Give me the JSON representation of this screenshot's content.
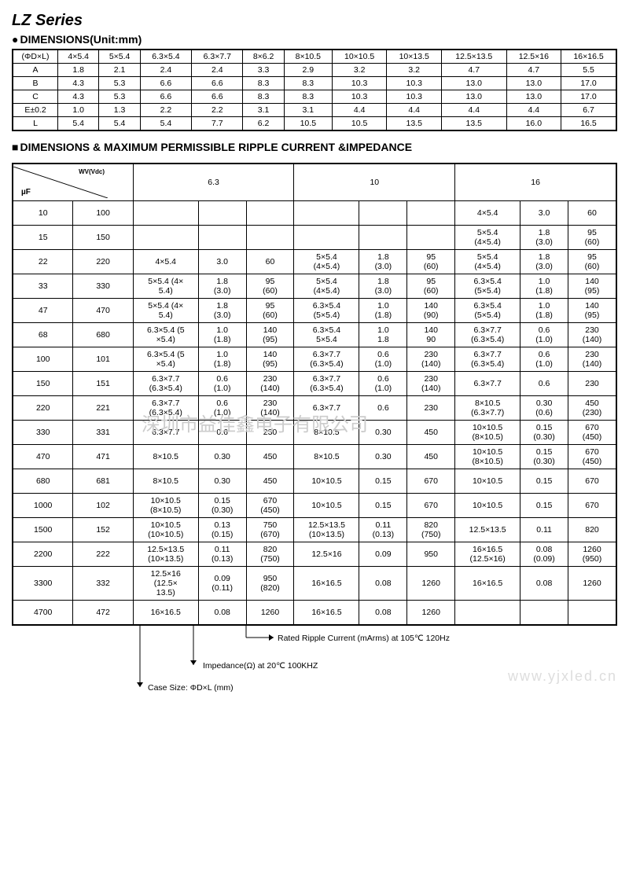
{
  "title": "LZ Series",
  "dim_heading": "DIMENSIONS(Unit:mm)",
  "ripple_heading": "DIMENSIONS & MAXIMUM PERMISSIBLE RIPPLE CURRENT &IMPEDANCE",
  "dim_table": {
    "header": [
      "(ΦD×L)",
      "4×5.4",
      "5×5.4",
      "6.3×5.4",
      "6.3×7.7",
      "8×6.2",
      "8×10.5",
      "10×10.5",
      "10×13.5",
      "12.5×13.5",
      "12.5×16",
      "16×16.5"
    ],
    "rows": [
      [
        "A",
        "1.8",
        "2.1",
        "2.4",
        "2.4",
        "3.3",
        "2.9",
        "3.2",
        "3.2",
        "4.7",
        "4.7",
        "5.5"
      ],
      [
        "B",
        "4.3",
        "5.3",
        "6.6",
        "6.6",
        "8.3",
        "8.3",
        "10.3",
        "10.3",
        "13.0",
        "13.0",
        "17.0"
      ],
      [
        "C",
        "4.3",
        "5.3",
        "6.6",
        "6.6",
        "8.3",
        "8.3",
        "10.3",
        "10.3",
        "13.0",
        "13.0",
        "17.0"
      ],
      [
        "E±0.2",
        "1.0",
        "1.3",
        "2.2",
        "2.2",
        "3.1",
        "3.1",
        "4.4",
        "4.4",
        "4.4",
        "4.4",
        "6.7"
      ],
      [
        "L",
        "5.4",
        "5.4",
        "5.4",
        "7.7",
        "6.2",
        "10.5",
        "10.5",
        "13.5",
        "13.5",
        "16.0",
        "16.5"
      ]
    ]
  },
  "ripple_table": {
    "diag_top": "WV(Vdc)",
    "diag_bot": "µF",
    "voltage_headers": [
      "6.3",
      "10",
      "16"
    ],
    "rows": [
      {
        "uf": "10",
        "code": "100",
        "v6": [
          "",
          "",
          ""
        ],
        "v10": [
          "",
          "",
          ""
        ],
        "v16": [
          "4×5.4",
          "3.0",
          "60"
        ]
      },
      {
        "uf": "15",
        "code": "150",
        "v6": [
          "",
          "",
          ""
        ],
        "v10": [
          "",
          "",
          ""
        ],
        "v16": [
          "5×5.4\n(4×5.4)",
          "1.8\n(3.0)",
          "95\n(60)"
        ]
      },
      {
        "uf": "22",
        "code": "220",
        "v6": [
          "4×5.4",
          "3.0",
          "60"
        ],
        "v10": [
          "5×5.4\n(4×5.4)",
          "1.8\n(3.0)",
          "95\n(60)"
        ],
        "v16": [
          "5×5.4\n(4×5.4)",
          "1.8\n(3.0)",
          "95\n(60)"
        ]
      },
      {
        "uf": "33",
        "code": "330",
        "v6": [
          "5×5.4  (4×\n5.4)",
          "1.8\n(3.0)",
          "95\n(60)"
        ],
        "v10": [
          "5×5.4\n(4×5.4)",
          "1.8\n(3.0)",
          "95\n(60)"
        ],
        "v16": [
          "6.3×5.4\n(5×5.4)",
          "1.0\n(1.8)",
          "140\n(95)"
        ]
      },
      {
        "uf": "47",
        "code": "470",
        "v6": [
          "5×5.4  (4×\n5.4)",
          "1.8\n(3.0)",
          "95\n(60)"
        ],
        "v10": [
          "6.3×5.4\n(5×5.4)",
          "1.0\n(1.8)",
          "140\n(90)"
        ],
        "v16": [
          "6.3×5.4\n(5×5.4)",
          "1.0\n(1.8)",
          "140\n(95)"
        ]
      },
      {
        "uf": "68",
        "code": "680",
        "v6": [
          "6.3×5.4 (5\n×5.4)",
          "1.0\n(1.8)",
          "140\n(95)"
        ],
        "v10": [
          "6.3×5.4\n5×5.4",
          "1.0\n1.8",
          "140\n90"
        ],
        "v16": [
          "6.3×7.7\n(6.3×5.4)",
          "0.6\n(1.0)",
          "230\n(140)"
        ]
      },
      {
        "uf": "100",
        "code": "101",
        "v6": [
          "6.3×5.4 (5\n×5.4)",
          "1.0\n(1.8)",
          "140\n(95)"
        ],
        "v10": [
          "6.3×7.7\n(6.3×5.4)",
          "0.6\n(1.0)",
          "230\n(140)"
        ],
        "v16": [
          "6.3×7.7\n(6.3×5.4)",
          "0.6\n(1.0)",
          "230\n(140)"
        ]
      },
      {
        "uf": "150",
        "code": "151",
        "v6": [
          "6.3×7.7\n(6.3×5.4)",
          "0.6\n(1.0)",
          "230\n(140)"
        ],
        "v10": [
          "6.3×7.7\n(6.3×5.4)",
          "0.6\n(1.0)",
          "230\n(140)"
        ],
        "v16": [
          "6.3×7.7",
          "0.6",
          "230"
        ]
      },
      {
        "uf": "220",
        "code": "221",
        "v6": [
          "6.3×7.7\n(6.3×5.4)",
          "0.6\n(1.0)",
          "230\n(140)"
        ],
        "v10": [
          "6.3×7.7",
          "0.6",
          "230"
        ],
        "v16": [
          "8×10.5\n(6.3×7.7)",
          "0.30\n(0.6)",
          "450\n(230)"
        ]
      },
      {
        "uf": "330",
        "code": "331",
        "v6": [
          "6.3×7.7",
          "0.6",
          "230"
        ],
        "v10": [
          "8×10.5",
          "0.30",
          "450"
        ],
        "v16": [
          "10×10.5\n(8×10.5)",
          "0.15\n(0.30)",
          "670\n(450)"
        ]
      },
      {
        "uf": "470",
        "code": "471",
        "v6": [
          "8×10.5",
          "0.30",
          "450"
        ],
        "v10": [
          "8×10.5",
          "0.30",
          "450"
        ],
        "v16": [
          "10×10.5\n(8×10.5)",
          "0.15\n(0.30)",
          "670\n(450)"
        ]
      },
      {
        "uf": "680",
        "code": "681",
        "v6": [
          "8×10.5",
          "0.30",
          "450"
        ],
        "v10": [
          "10×10.5",
          "0.15",
          "670"
        ],
        "v16": [
          "10×10.5",
          "0.15",
          "670"
        ]
      },
      {
        "uf": "1000",
        "code": "102",
        "v6": [
          "10×10.5\n(8×10.5)",
          "0.15\n(0.30)",
          "670\n(450)"
        ],
        "v10": [
          "10×10.5",
          "0.15",
          "670"
        ],
        "v16": [
          "10×10.5",
          "0.15",
          "670"
        ]
      },
      {
        "uf": "1500",
        "code": "152",
        "v6": [
          "10×10.5\n(10×10.5)",
          "0.13\n(0.15)",
          "750\n(670)"
        ],
        "v10": [
          "12.5×13.5\n(10×13.5)",
          "0.11\n(0.13)",
          "820\n(750)"
        ],
        "v16": [
          "12.5×13.5",
          "0.11",
          "820"
        ]
      },
      {
        "uf": "2200",
        "code": "222",
        "v6": [
          "12.5×13.5\n(10×13.5)",
          "0.11\n(0.13)",
          "820\n(750)"
        ],
        "v10": [
          "12.5×16",
          "0.09",
          "950"
        ],
        "v16": [
          "16×16.5\n(12.5×16)",
          "0.08\n(0.09)",
          "1260\n(950)"
        ]
      },
      {
        "uf": "3300",
        "code": "332",
        "v6": [
          "12.5×16\n(12.5×\n13.5)",
          "0.09\n(0.11)",
          "950\n(820)"
        ],
        "v10": [
          "16×16.5",
          "0.08",
          "1260"
        ],
        "v16": [
          "16×16.5",
          "0.08",
          "1260"
        ]
      },
      {
        "uf": "4700",
        "code": "472",
        "v6": [
          "16×16.5",
          "0.08",
          "1260"
        ],
        "v10": [
          "16×16.5",
          "0.08",
          "1260"
        ],
        "v16": [
          "",
          "",
          ""
        ]
      }
    ]
  },
  "annotations": {
    "ripple": "Rated Ripple Current (mArms) at 105℃ 120Hz",
    "impedance": "Impedance(Ω) at 20℃  100KHZ",
    "case": "Case Size:  ΦD×L (mm)"
  },
  "watermark_cn": "深圳市益佳鑫电子有限公司",
  "watermark_url": "www.yjxled.cn"
}
